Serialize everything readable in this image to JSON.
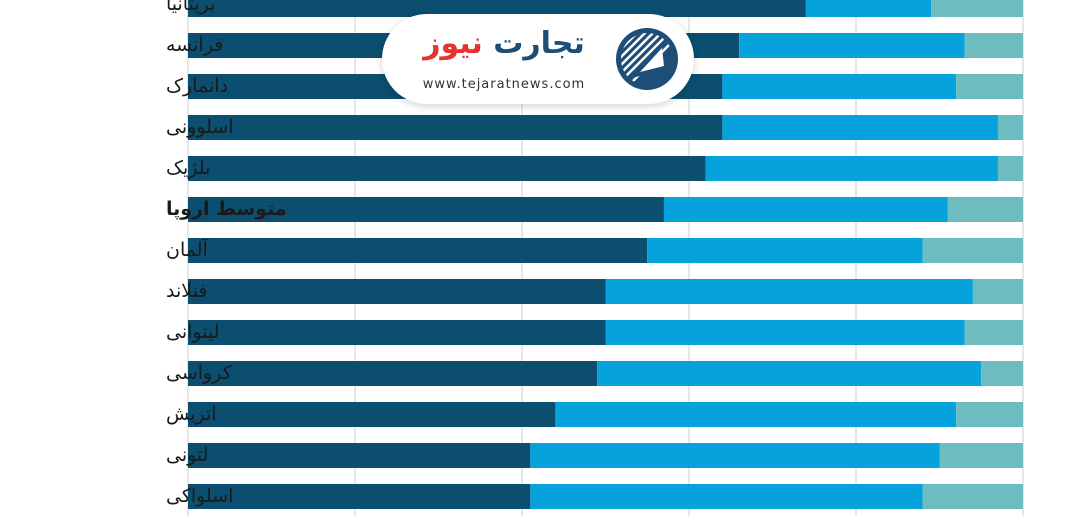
{
  "chart_data": {
    "type": "stacked-bar-horizontal",
    "categories": [
      "بریتانیا",
      "فرانسه",
      "دانمارک",
      "اسلوونی",
      "بلژیک",
      "متوسط اروپا",
      "آلمان",
      "فنلاند",
      "لیتوانی",
      "کرواسی",
      "اتریش",
      "لتونی",
      "اسلواکی"
    ],
    "highlight": "متوسط اروپا",
    "series": [
      {
        "values": [
          74,
          66,
          64,
          64,
          62,
          57,
          55,
          50,
          50,
          49,
          44,
          41,
          41
        ]
      },
      {
        "values": [
          15,
          27,
          28,
          33,
          35,
          34,
          33,
          44,
          43,
          46,
          48,
          49,
          47
        ]
      },
      {
        "values": [
          11,
          7,
          8,
          3,
          3,
          9,
          12,
          6,
          7,
          5,
          8,
          10,
          12
        ]
      }
    ],
    "xlim": [
      0,
      100
    ],
    "grid": true,
    "colors": [
      "#0b4e6f",
      "#06a2dc",
      "#6cbcc0"
    ]
  },
  "logo": {
    "name_part1": "تجارت",
    "name_part2": "نیوز",
    "url": "www.tejaratnews.com",
    "emblem_icon": "rising-arrow-icon"
  }
}
